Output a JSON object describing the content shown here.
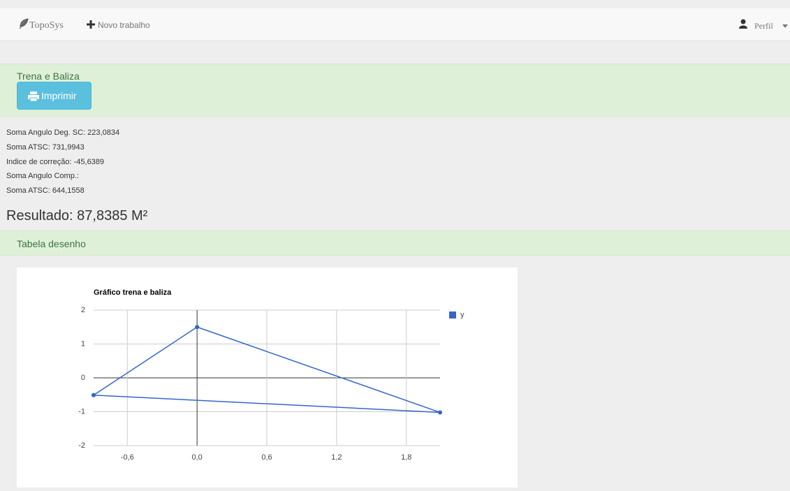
{
  "nav": {
    "brand": "TopoSys",
    "new_job": "Novo trabalho",
    "profile": "Perfil"
  },
  "panel_top": {
    "title": "Trena e Baliza",
    "button": "Imprimir"
  },
  "stats": [
    "Soma Angulo Deg. SC: 223,0834",
    "Soma ATSC: 731,9943",
    "Indice de correção: -45,6389",
    "Soma Angulo Comp.:",
    "Soma ATSC: 644,1558"
  ],
  "result": "Resultado: 87,8385 M²",
  "panel_table": {
    "title": "Tabela desenho"
  },
  "chart_data": {
    "type": "line",
    "title": "Gráfico trena e baliza",
    "x": [
      -0.89,
      0,
      2.09,
      -0.89
    ],
    "series": [
      {
        "name": "y",
        "color": "#3366cc",
        "values": [
          -0.51,
          1.5,
          -1.02,
          -0.51
        ]
      }
    ],
    "xlim": [
      -0.89,
      2.09
    ],
    "xticks": [
      {
        "value": -0.6,
        "label": "-0,6"
      },
      {
        "value": 0,
        "label": "0,0"
      },
      {
        "value": 0.6,
        "label": "0,6"
      },
      {
        "value": 1.2,
        "label": "1,2"
      },
      {
        "value": 1.8,
        "label": "1,8"
      }
    ],
    "ylim": [
      -2,
      2
    ],
    "yticks": [
      -2,
      -1,
      0,
      1,
      2
    ],
    "grid": true,
    "legend": "right"
  }
}
